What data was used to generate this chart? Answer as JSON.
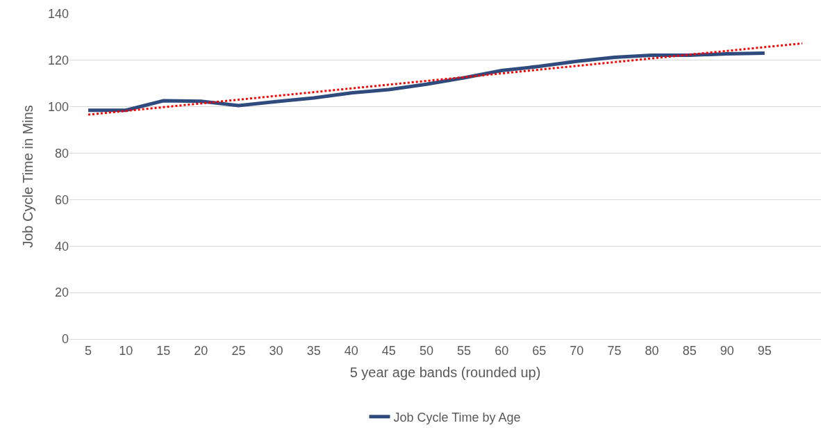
{
  "chart_data": {
    "type": "line",
    "xlabel": "5 year age bands (rounded up)",
    "ylabel": "Job Cycle Time in Mins",
    "x": [
      5,
      10,
      15,
      20,
      25,
      30,
      35,
      40,
      45,
      50,
      55,
      60,
      65,
      70,
      75,
      80,
      85,
      90,
      95
    ],
    "series": [
      {
        "name": "Job Cycle Time by Age",
        "color": "#2f4a7d",
        "values": [
          98.5,
          98.5,
          102.6,
          102.4,
          100.5,
          102.2,
          103.8,
          106,
          107.4,
          109.7,
          112.5,
          115.6,
          117.4,
          119.6,
          121.3,
          122.2,
          122.2,
          122.8,
          123.1
        ]
      },
      {
        "type": "line",
        "color": "#ff0000",
        "line_style": "dotted",
        "x": [
          5,
          100
        ],
        "values": [
          96.6,
          127.3
        ]
      }
    ],
    "xlim": [
      2.5,
      102.5
    ],
    "xticks": [
      5,
      10,
      15,
      20,
      25,
      30,
      35,
      40,
      45,
      50,
      55,
      60,
      65,
      70,
      75,
      80,
      85,
      90,
      95
    ],
    "ylim": [
      0,
      140
    ],
    "yticks": [
      0,
      20,
      40,
      60,
      80,
      100,
      120,
      140
    ],
    "grid": "y",
    "legend": "bottom",
    "line_style": "solid",
    "marker": "none"
  }
}
